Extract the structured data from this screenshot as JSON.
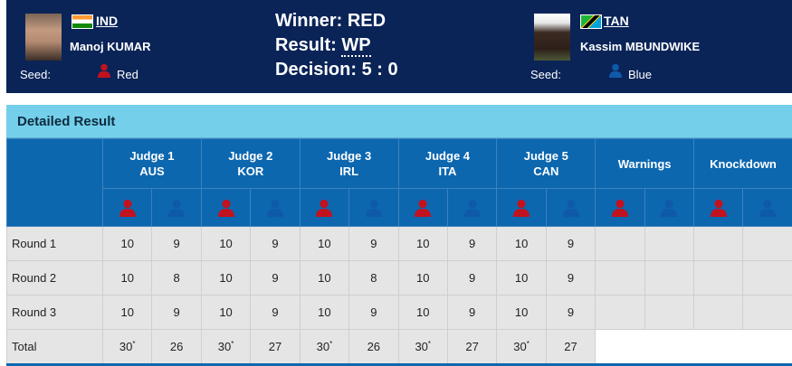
{
  "colors": {
    "header_bg": "#0a2458",
    "table_header_bg": "#0c67af",
    "panel_title_bg": "#74cfea",
    "red_corner": "#c1121f",
    "blue_corner": "#0f5aa8",
    "cell_bg": "#e5e5e5"
  },
  "red_athlete": {
    "noc": "IND",
    "name": "Manoj KUMAR",
    "seed_label": "Seed:",
    "seed_value": "Red",
    "flag_icon": "flag-india-icon"
  },
  "blue_athlete": {
    "noc": "TAN",
    "name": "Kassim MBUNDWIKE",
    "seed_label": "Seed:",
    "seed_value": "Blue",
    "flag_icon": "flag-tanzania-icon"
  },
  "result": {
    "winner": "Winner: RED",
    "result_label": "Result:",
    "result_value": "WP",
    "decision_label": "Decision:",
    "decision_value": "5 : 0"
  },
  "detailed": {
    "title": "Detailed Result",
    "judges": [
      {
        "label": "Judge 1",
        "country": "AUS"
      },
      {
        "label": "Judge 2",
        "country": "KOR"
      },
      {
        "label": "Judge 3",
        "country": "IRL"
      },
      {
        "label": "Judge 4",
        "country": "ITA"
      },
      {
        "label": "Judge 5",
        "country": "CAN"
      }
    ],
    "warnings_label": "Warnings",
    "knockdown_label": "Knockdown",
    "rows": [
      {
        "label": "Round 1",
        "scores": [
          "10",
          "9",
          "10",
          "9",
          "10",
          "9",
          "10",
          "9",
          "10",
          "9"
        ],
        "warnings": [
          "",
          ""
        ],
        "knockdowns": [
          "",
          ""
        ]
      },
      {
        "label": "Round 2",
        "scores": [
          "10",
          "8",
          "10",
          "9",
          "10",
          "8",
          "10",
          "9",
          "10",
          "9"
        ],
        "warnings": [
          "",
          ""
        ],
        "knockdowns": [
          "",
          ""
        ]
      },
      {
        "label": "Round 3",
        "scores": [
          "10",
          "9",
          "10",
          "9",
          "10",
          "9",
          "10",
          "9",
          "10",
          "9"
        ],
        "warnings": [
          "",
          ""
        ],
        "knockdowns": [
          "",
          ""
        ]
      }
    ],
    "total": {
      "label": "Total",
      "scores": [
        "30",
        "26",
        "30",
        "27",
        "30",
        "26",
        "30",
        "27",
        "30",
        "27"
      ],
      "winner_marker": "*"
    }
  }
}
